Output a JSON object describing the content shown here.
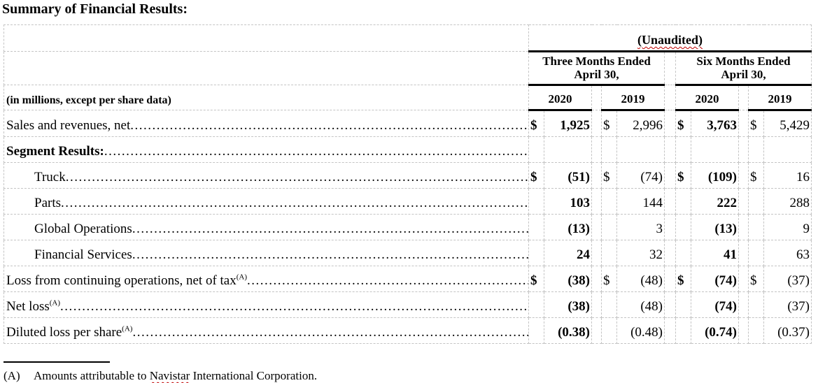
{
  "page": {
    "title": "Summary of Financial Results:"
  },
  "table": {
    "unaudited_label": "(Unaudited)",
    "currency_symbol": "$",
    "col_groups": [
      {
        "line1": "Three Months Ended",
        "line2": "April 30,"
      },
      {
        "line1": "Six Months Ended",
        "line2": "April 30,"
      }
    ],
    "year_headers": [
      "2020",
      "2019",
      "2020",
      "2019"
    ],
    "row_header_note": "(in millions, except per share data)",
    "bold_value_cols": [
      0,
      2
    ],
    "rows": [
      {
        "label": "Sales and revenues, net",
        "sup": "",
        "indent": 0,
        "bold_label": false,
        "dollars": true,
        "values": [
          "1,925",
          "2,996",
          "3,763",
          "5,429"
        ]
      },
      {
        "label": "Segment Results:",
        "sup": "",
        "indent": 0,
        "bold_label": true,
        "dollars": false,
        "values": [
          "",
          "",
          "",
          ""
        ]
      },
      {
        "label": "Truck",
        "sup": "",
        "indent": 1,
        "bold_label": false,
        "dollars": true,
        "values": [
          "(51)",
          "(74)",
          "(109)",
          "16"
        ]
      },
      {
        "label": "Parts",
        "sup": "",
        "indent": 1,
        "bold_label": false,
        "dollars": false,
        "values": [
          "103",
          "144",
          "222",
          "288"
        ]
      },
      {
        "label": "Global Operations",
        "sup": "",
        "indent": 1,
        "bold_label": false,
        "dollars": false,
        "values": [
          "(13)",
          "3",
          "(13)",
          "9"
        ]
      },
      {
        "label": "Financial Services",
        "sup": "",
        "indent": 1,
        "bold_label": false,
        "dollars": false,
        "values": [
          "24",
          "32",
          "41",
          "63"
        ]
      },
      {
        "label": "Loss from continuing operations, net of tax",
        "sup": "(A)",
        "indent": 0,
        "bold_label": false,
        "dollars": true,
        "values": [
          "(38)",
          "(48)",
          "(74)",
          "(37)"
        ]
      },
      {
        "label": "Net loss",
        "sup": "(A)",
        "indent": 0,
        "bold_label": false,
        "dollars": false,
        "values": [
          "(38)",
          "(48)",
          "(74)",
          "(37)"
        ]
      },
      {
        "label": "Diluted loss per share",
        "sup": "(A)",
        "indent": 0,
        "bold_label": false,
        "dollars": false,
        "values": [
          "(0.38)",
          "(0.48)",
          "(0.74)",
          "(0.37)"
        ]
      }
    ]
  },
  "footnote": {
    "marker": "(A)",
    "text_before": "Amounts attributable to ",
    "wavy_word": "Navistar",
    "text_after": " International Corporation."
  },
  "colors": {
    "text": "#000000",
    "grid_dashed": "#c4c4c4",
    "thick_rule": "#000000",
    "spellcheck_underline": "#c00000"
  }
}
